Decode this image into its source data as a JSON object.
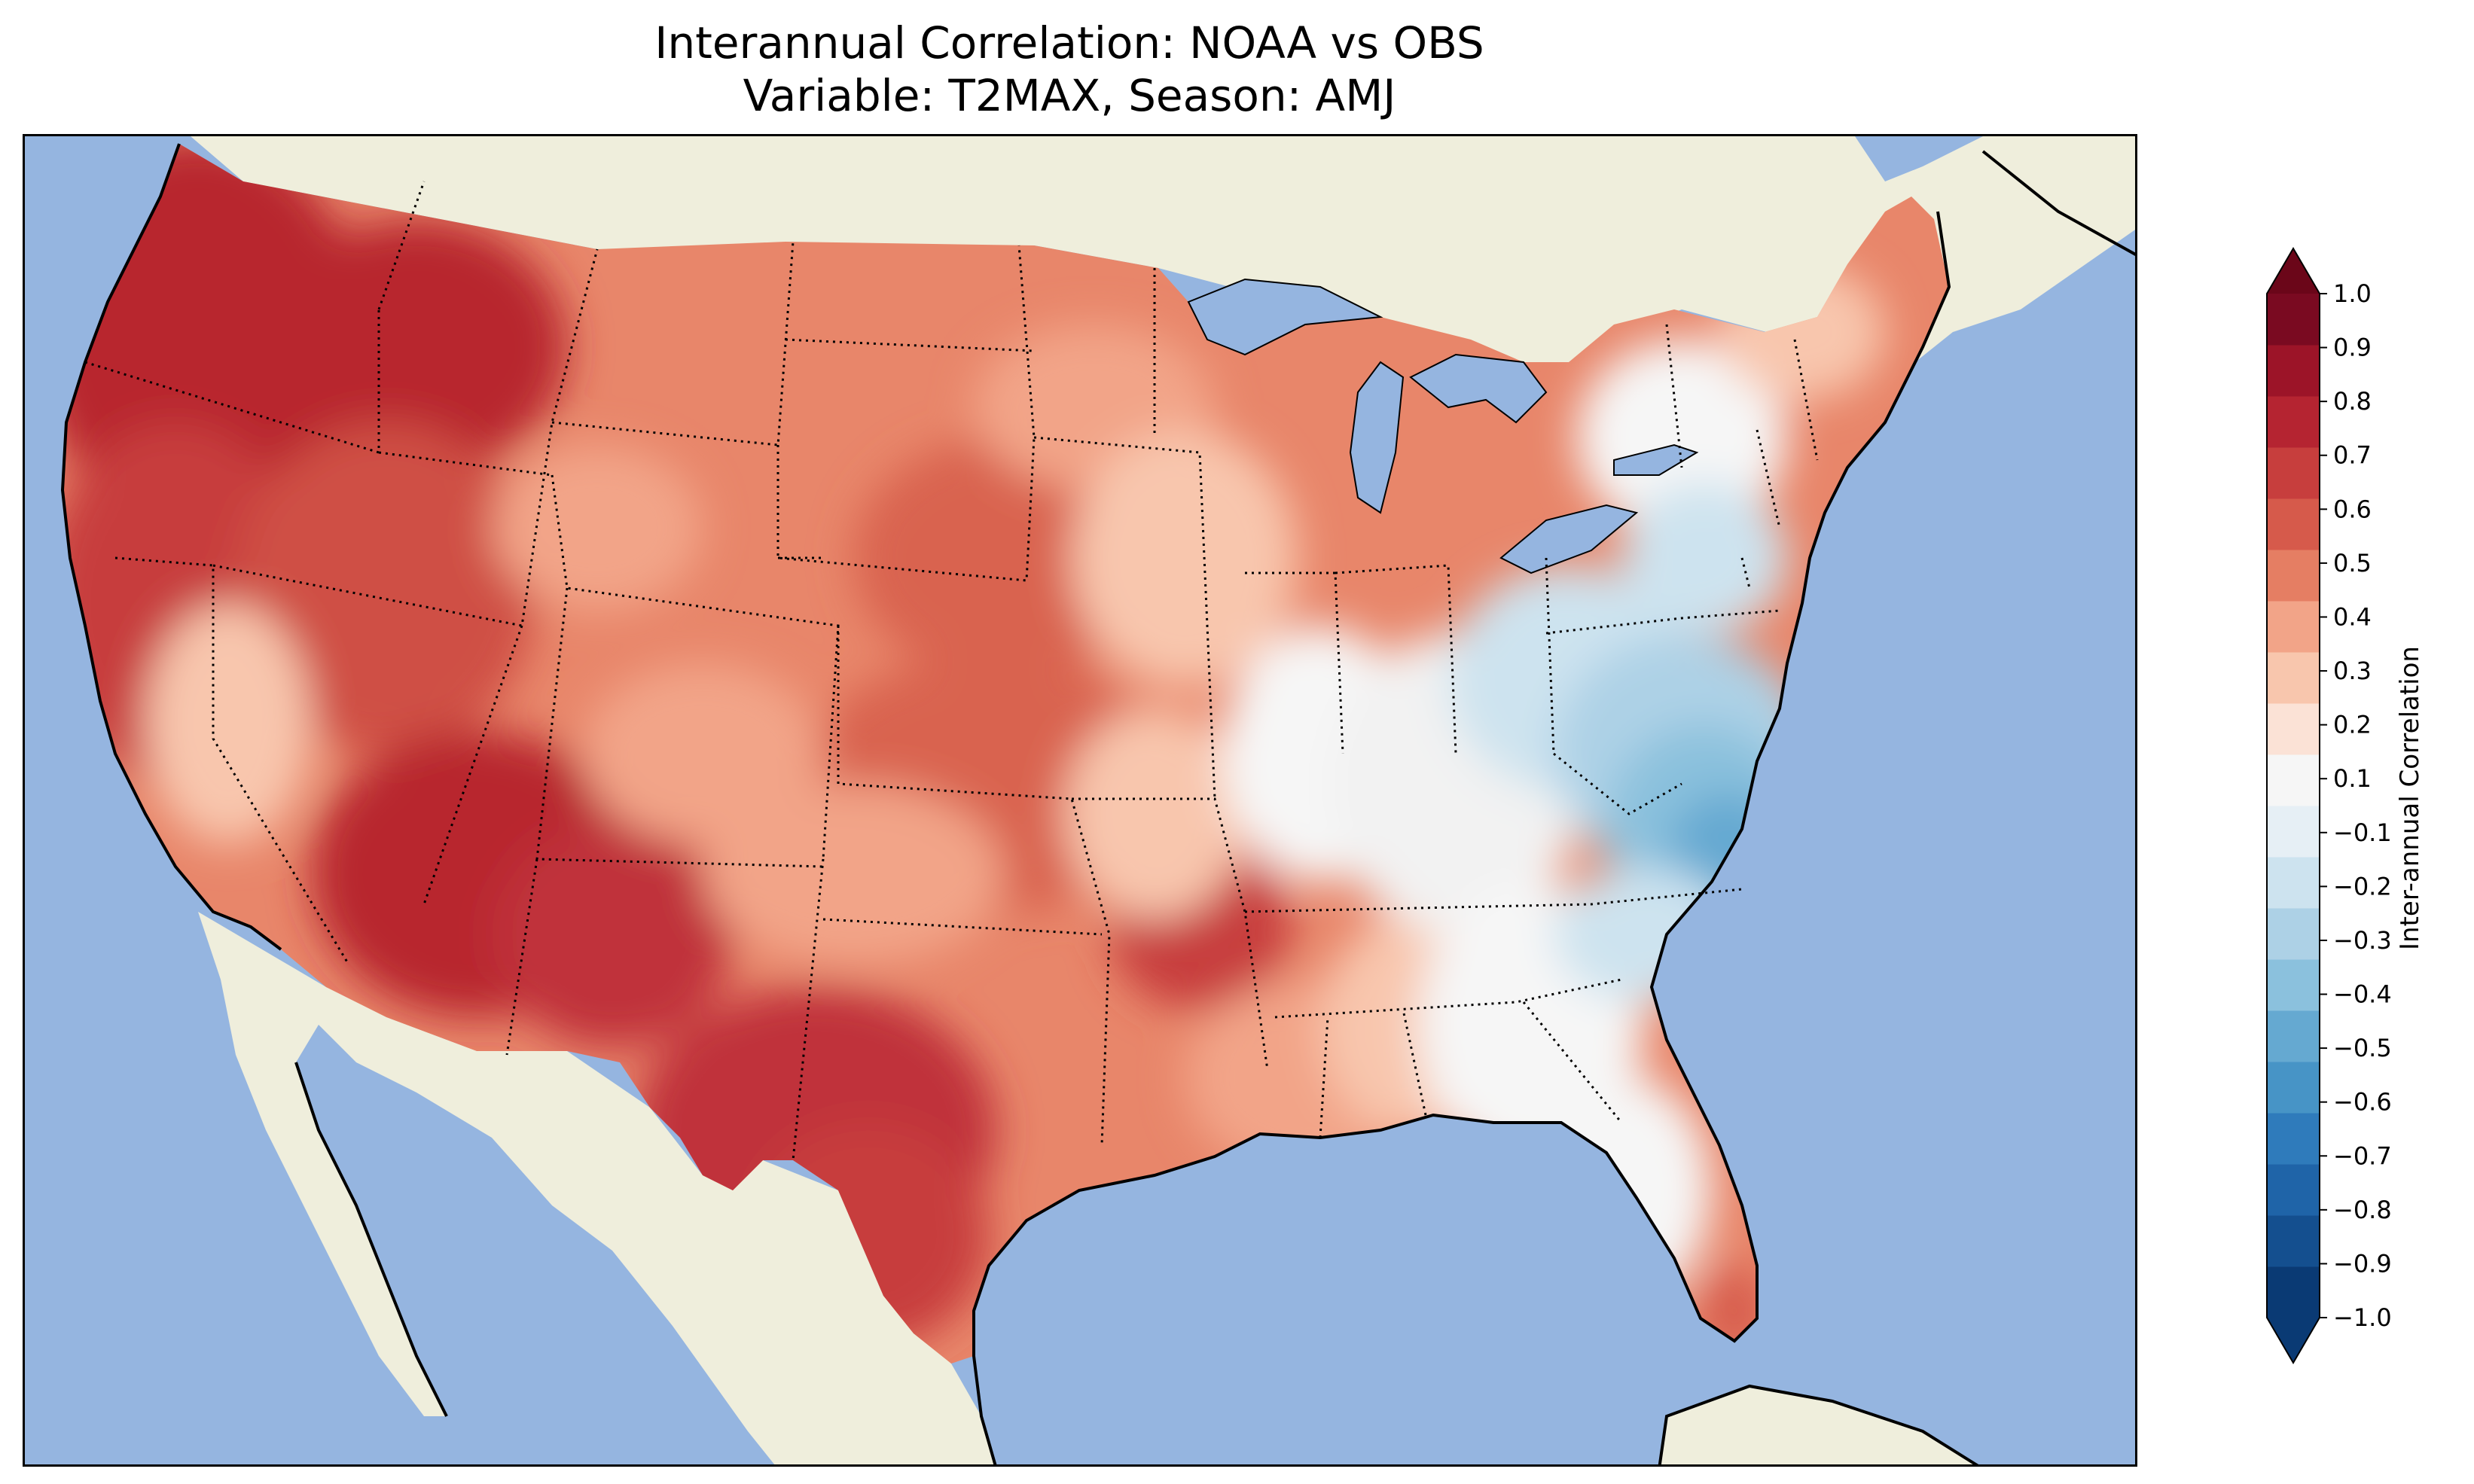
{
  "title": {
    "line1": "Interannual Correlation: NOAA vs OBS",
    "line2": "Variable: T2MAX, Season: AMJ"
  },
  "colors": {
    "ocean": "#95b5e0",
    "land": "#efeedc",
    "lake": "#95b5e0",
    "border": "#000000"
  },
  "colorbar": {
    "label": "Inter-annual Correlation",
    "levels": [
      -1.0,
      -0.9,
      -0.8,
      -0.7,
      -0.6,
      -0.5,
      -0.4,
      -0.3,
      -0.2,
      -0.1,
      0.1,
      0.2,
      0.3,
      0.4,
      0.5,
      0.6,
      0.7,
      0.8,
      0.9,
      1.0
    ],
    "tick_labels": [
      "−1.0",
      "−0.9",
      "−0.8",
      "−0.7",
      "−0.6",
      "−0.5",
      "−0.4",
      "−0.3",
      "−0.2",
      "−0.1",
      "0.1",
      "0.2",
      "0.3",
      "0.4",
      "0.5",
      "0.6",
      "0.7",
      "0.8",
      "0.9",
      "1.0"
    ],
    "bin_colors": [
      "#0a3a74",
      "#144f8f",
      "#1f64a8",
      "#2f7bbb",
      "#4794c6",
      "#65a9d1",
      "#8bc1dd",
      "#add1e6",
      "#cde3ef",
      "#e6eff5",
      "#f6f6f6",
      "#fbe2d6",
      "#f8c6ad",
      "#f2a488",
      "#e57e63",
      "#d65a4b",
      "#c73e3d",
      "#b52431",
      "#9c1428",
      "#7a0a21"
    ],
    "extend": "both",
    "under_color": "#0a3a74",
    "over_color": "#6b0619"
  }
}
